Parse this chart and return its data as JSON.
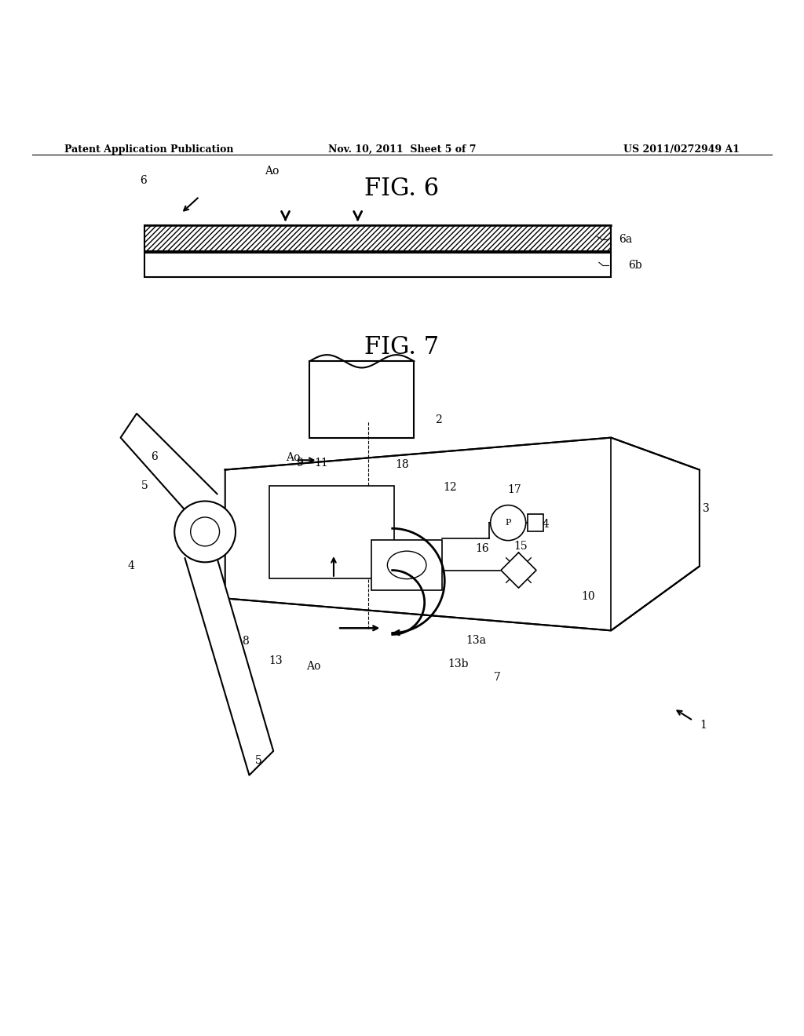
{
  "background_color": "#ffffff",
  "header_left": "Patent Application Publication",
  "header_mid": "Nov. 10, 2011  Sheet 5 of 7",
  "header_right": "US 2011/0272949 A1",
  "fig6_title": "FIG. 6",
  "fig7_title": "FIG. 7",
  "line_color": "#000000",
  "text_color": "#000000"
}
